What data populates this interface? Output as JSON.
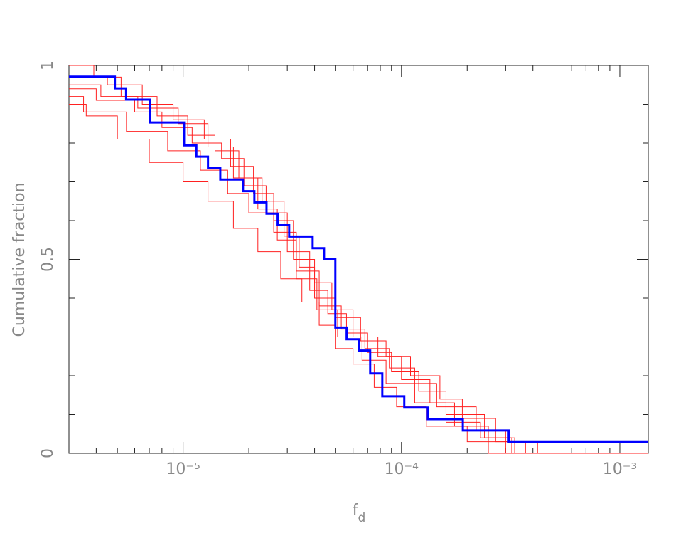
{
  "chart_data": {
    "type": "step",
    "xlabel": "f",
    "xlabel_subscript": "d",
    "ylabel": "Cumulative fraction",
    "xscale": "log",
    "xlim": [
      3e-06,
      0.00135
    ],
    "ylim": [
      0,
      1
    ],
    "xticks": [
      {
        "value": 1e-05,
        "label": "10⁻⁵"
      },
      {
        "value": 0.0001,
        "label": "10⁻⁴"
      },
      {
        "value": 0.001,
        "label": "10⁻³"
      }
    ],
    "xminor_ticks": [
      4e-06,
      5e-06,
      6e-06,
      7e-06,
      8e-06,
      9e-06,
      2e-05,
      3e-05,
      4e-05,
      5e-05,
      6e-05,
      7e-05,
      8e-05,
      9e-05,
      0.0002,
      0.0003,
      0.0004,
      0.0005,
      0.0006,
      0.0007,
      0.0008,
      0.0009
    ],
    "yticks": [
      0,
      0.5,
      1
    ],
    "yminor_ticks": [
      0.1,
      0.2,
      0.3,
      0.4,
      0.6,
      0.7,
      0.8,
      0.9
    ],
    "series": [
      {
        "color": "#ff2020",
        "x": [
          3e-06,
          3.6e-06,
          5e-06,
          7e-06,
          1e-05,
          1.3e-05,
          1.7e-05,
          2.2e-05,
          2.8e-05,
          3.5e-05,
          4.2e-05,
          5e-05,
          6e-05,
          7.5e-05,
          9.5e-05,
          0.00013,
          0.0002,
          0.00025
        ],
        "values": [
          0.9,
          0.87,
          0.81,
          0.75,
          0.7,
          0.65,
          0.58,
          0.52,
          0.45,
          0.39,
          0.33,
          0.27,
          0.23,
          0.17,
          0.12,
          0.07,
          0.03,
          0
        ]
      },
      {
        "color": "#ff2020",
        "x": [
          3e-06,
          4e-06,
          6e-06,
          8e-06,
          1.1e-05,
          1.5e-05,
          1.9e-05,
          2.4e-05,
          3e-05,
          3.8e-05,
          4.6e-05,
          5.6e-05,
          7e-05,
          9e-05,
          0.00012,
          0.00016,
          0.00024,
          0.00033
        ],
        "values": [
          0.94,
          0.91,
          0.88,
          0.84,
          0.8,
          0.76,
          0.69,
          0.62,
          0.52,
          0.42,
          0.36,
          0.31,
          0.26,
          0.21,
          0.16,
          0.1,
          0.04,
          0
        ]
      },
      {
        "color": "#ff2020",
        "x": [
          3e-06,
          3.9e-06,
          5.2e-06,
          7.6e-06,
          1.05e-05,
          1.4e-05,
          1.8e-05,
          2.3e-05,
          2.9e-05,
          3.4e-05,
          4e-05,
          5e-05,
          6.5e-05,
          8.5e-05,
          0.00011,
          0.00015,
          0.00019,
          0.00027,
          0.00042
        ],
        "values": [
          1.0,
          0.97,
          0.92,
          0.87,
          0.82,
          0.78,
          0.71,
          0.65,
          0.56,
          0.48,
          0.4,
          0.35,
          0.29,
          0.25,
          0.2,
          0.14,
          0.09,
          0.03,
          0
        ]
      },
      {
        "color": "#ff2020",
        "x": [
          3e-06,
          3.5e-06,
          5.5e-06,
          8.5e-06,
          1.2e-05,
          1.6e-05,
          2e-05,
          2.6e-05,
          3.3e-05,
          4.2e-05,
          5.3e-05,
          6.8e-05,
          8.8e-05,
          0.000115,
          0.000145,
          0.00022,
          0.0003
        ],
        "values": [
          0.92,
          0.88,
          0.83,
          0.78,
          0.73,
          0.67,
          0.62,
          0.57,
          0.47,
          0.38,
          0.32,
          0.27,
          0.22,
          0.18,
          0.12,
          0.06,
          0
        ]
      },
      {
        "color": "#ff2020",
        "x": [
          3e-06,
          4.5e-06,
          6.5e-06,
          9e-06,
          1.25e-05,
          1.65e-05,
          2.1e-05,
          2.6e-05,
          3.2e-05,
          4e-05,
          4.8e-05,
          6e-05,
          7.8e-05,
          0.0001,
          0.000135,
          0.000175,
          0.00025,
          0.00037
        ],
        "values": [
          0.97,
          0.95,
          0.9,
          0.86,
          0.81,
          0.74,
          0.67,
          0.6,
          0.5,
          0.44,
          0.37,
          0.3,
          0.25,
          0.19,
          0.13,
          0.07,
          0.03,
          0
        ]
      },
      {
        "color": "#ff2020",
        "x": [
          3e-06,
          4.2e-06,
          6.2e-06,
          9.5e-06,
          1.3e-05,
          1.7e-05,
          2.2e-05,
          2.7e-05,
          3.3e-05,
          4.1e-05,
          5.1e-05,
          6.6e-05,
          8.5e-05,
          0.000115,
          0.00016,
          0.00023,
          0.00032
        ],
        "values": [
          0.95,
          0.92,
          0.89,
          0.85,
          0.79,
          0.71,
          0.63,
          0.55,
          0.45,
          0.37,
          0.3,
          0.24,
          0.18,
          0.13,
          0.08,
          0.04,
          0
        ]
      },
      {
        "color": "#0000ff",
        "x": [
          3e-06,
          4.87e-06,
          5.48e-06,
          7.03e-06,
          1.01e-05,
          1.15e-05,
          1.3e-05,
          1.48e-05,
          1.88e-05,
          2.12e-05,
          2.41e-05,
          2.71e-05,
          3.06e-05,
          3.92e-05,
          4.42e-05,
          4.98e-05,
          5.61e-05,
          6.38e-05,
          7.19e-05,
          8.17e-05,
          0.000103,
          0.000132,
          0.000191,
          0.00031
        ],
        "values": [
          0.971,
          0.941,
          0.912,
          0.853,
          0.794,
          0.765,
          0.735,
          0.706,
          0.676,
          0.647,
          0.618,
          0.588,
          0.559,
          0.529,
          0.5,
          0.324,
          0.294,
          0.265,
          0.206,
          0.147,
          0.118,
          0.088,
          0.059,
          0.029
        ]
      }
    ]
  }
}
